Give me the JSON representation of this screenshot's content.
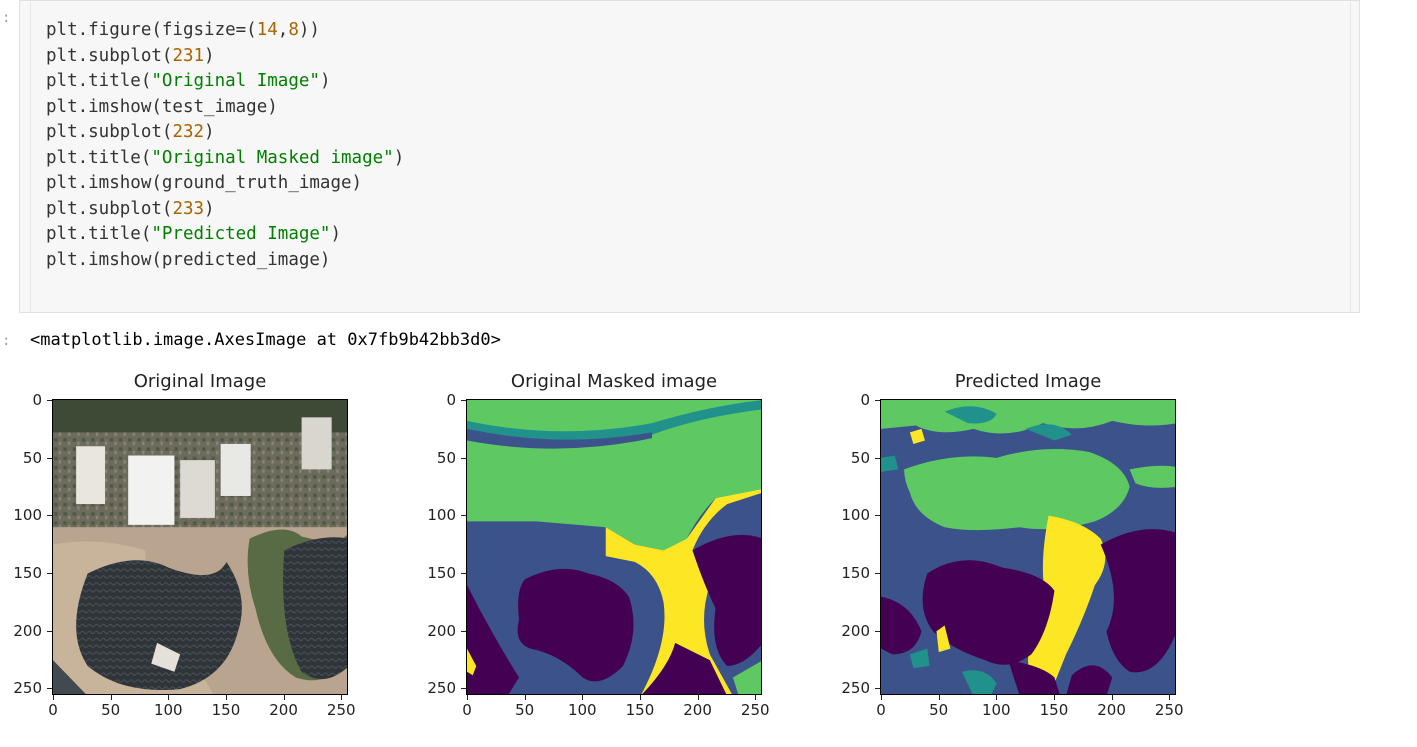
{
  "notebook": {
    "prompt_char": ":",
    "code_lines": [
      [
        {
          "t": "plt.figure(figsize=("
        },
        {
          "t": "14",
          "k": "num"
        },
        {
          "t": ","
        },
        {
          "t": "8",
          "k": "num"
        },
        {
          "t": "))"
        }
      ],
      [
        {
          "t": "plt.subplot("
        },
        {
          "t": "231",
          "k": "num"
        },
        {
          "t": ")"
        }
      ],
      [
        {
          "t": "plt.title("
        },
        {
          "t": "\"Original Image\"",
          "k": "str"
        },
        {
          "t": ")"
        }
      ],
      [
        {
          "t": "plt.imshow(test_image)"
        }
      ],
      [
        {
          "t": "plt.subplot("
        },
        {
          "t": "232",
          "k": "num"
        },
        {
          "t": ")"
        }
      ],
      [
        {
          "t": "plt.title("
        },
        {
          "t": "\"Original Masked image\"",
          "k": "str"
        },
        {
          "t": ")"
        }
      ],
      [
        {
          "t": "plt.imshow(ground_truth_image)"
        }
      ],
      [
        {
          "t": "plt.subplot("
        },
        {
          "t": "233",
          "k": "num"
        },
        {
          "t": ")"
        }
      ],
      [
        {
          "t": "plt.title("
        },
        {
          "t": "\"Predicted Image\"",
          "k": "str"
        },
        {
          "t": ")"
        }
      ],
      [
        {
          "t": "plt.imshow(predicted_image)"
        }
      ]
    ],
    "output_text": "<matplotlib.image.AxesImage at 0x7fb9b42bb3d0>"
  },
  "colors": {
    "code_number": "#aa6300",
    "code_string": "#007f00",
    "mask_yellow": "#fde725",
    "mask_green": "#5ec962",
    "mask_teal": "#21918c",
    "mask_blue": "#3b528b",
    "mask_purple": "#440154"
  },
  "chart_data": [
    {
      "type": "image",
      "title": "Original Image",
      "content": "aerial-photo",
      "x_ticks": [
        "0",
        "50",
        "100",
        "150",
        "200",
        "250"
      ],
      "y_ticks": [
        "0",
        "50",
        "100",
        "150",
        "200",
        "250"
      ],
      "xlim": [
        0,
        255
      ],
      "ylim": [
        255,
        0
      ]
    },
    {
      "type": "image",
      "title": "Original Masked image",
      "content": "segmentation-mask",
      "x_ticks": [
        "0",
        "50",
        "100",
        "150",
        "200",
        "250"
      ],
      "y_ticks": [
        "0",
        "50",
        "100",
        "150",
        "200",
        "250"
      ],
      "xlim": [
        0,
        255
      ],
      "ylim": [
        255,
        0
      ]
    },
    {
      "type": "image",
      "title": "Predicted Image",
      "content": "segmentation-mask",
      "x_ticks": [
        "0",
        "50",
        "100",
        "150",
        "200",
        "250"
      ],
      "y_ticks": [
        "0",
        "50",
        "100",
        "150",
        "200",
        "250"
      ],
      "xlim": [
        0,
        255
      ],
      "ylim": [
        255,
        0
      ]
    }
  ]
}
